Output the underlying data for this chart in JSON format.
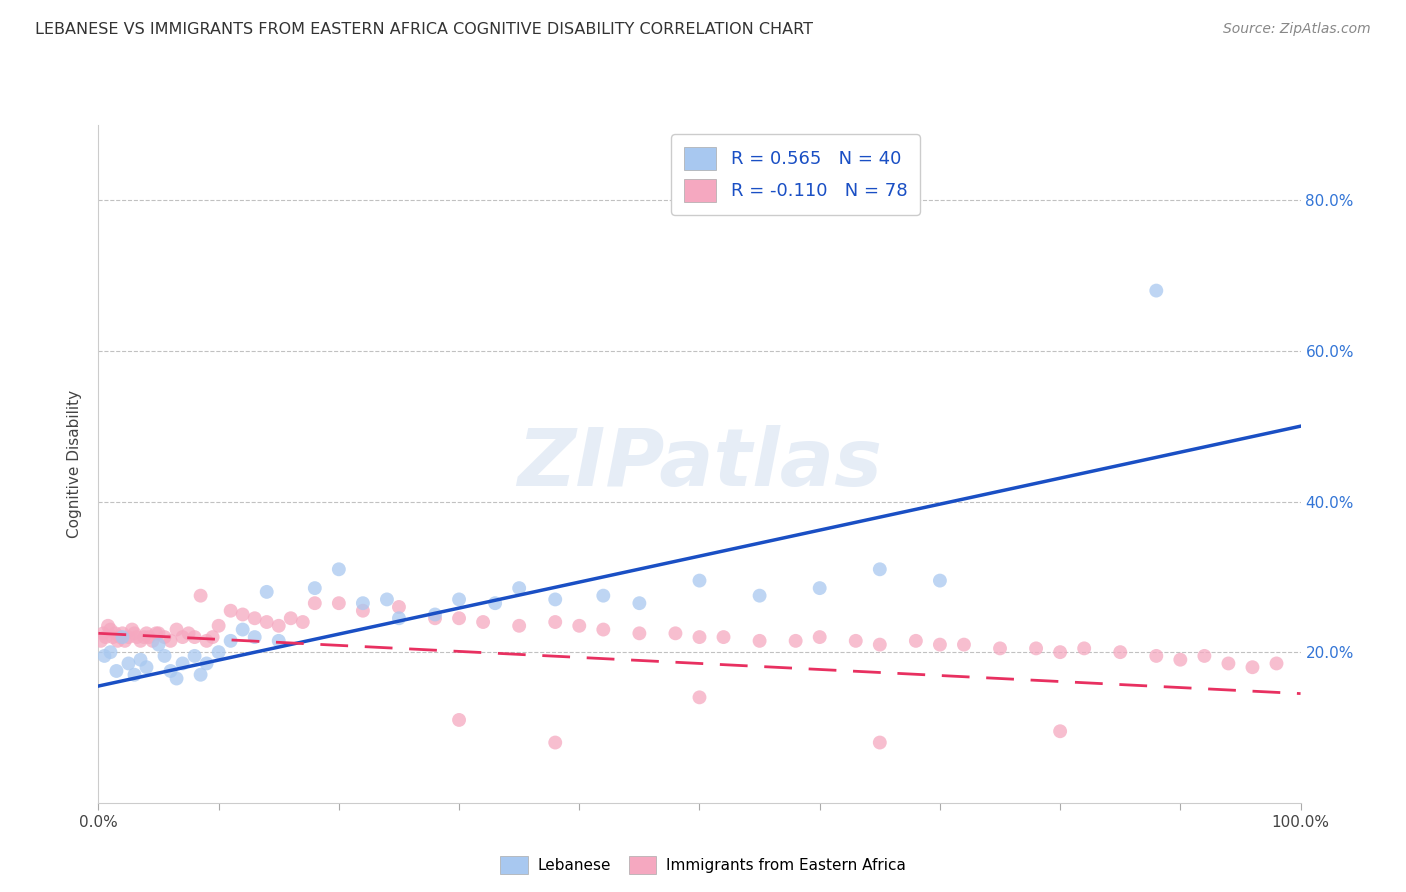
{
  "title": "LEBANESE VS IMMIGRANTS FROM EASTERN AFRICA COGNITIVE DISABILITY CORRELATION CHART",
  "source": "Source: ZipAtlas.com",
  "ylabel": "Cognitive Disability",
  "legend_labels": [
    "Lebanese",
    "Immigrants from Eastern Africa"
  ],
  "R_blue": 0.565,
  "N_blue": 40,
  "R_pink": -0.11,
  "N_pink": 78,
  "blue_color": "#A8C8F0",
  "pink_color": "#F5A8C0",
  "blue_line_color": "#1A4FC4",
  "pink_line_color": "#E83060",
  "background_color": "#FFFFFF",
  "grid_color": "#BBBBBB",
  "watermark": "ZIPatlas",
  "xmin": 0.0,
  "xmax": 1.0,
  "ymin": 0.0,
  "ymax": 0.9,
  "yticks": [
    0.2,
    0.4,
    0.6,
    0.8
  ],
  "ytick_labels": [
    "20.0%",
    "40.0%",
    "60.0%",
    "80.0%"
  ],
  "xticks": [
    0.0,
    0.1,
    0.2,
    0.3,
    0.4,
    0.5,
    0.6,
    0.7,
    0.8,
    0.9,
    1.0
  ],
  "blue_line_start_y": 0.155,
  "blue_line_end_y": 0.5,
  "pink_line_start_y": 0.225,
  "pink_line_end_y": 0.145,
  "blue_x": [
    0.005,
    0.01,
    0.015,
    0.02,
    0.025,
    0.03,
    0.035,
    0.04,
    0.05,
    0.055,
    0.06,
    0.065,
    0.07,
    0.08,
    0.085,
    0.09,
    0.1,
    0.11,
    0.12,
    0.13,
    0.14,
    0.15,
    0.18,
    0.2,
    0.22,
    0.24,
    0.25,
    0.28,
    0.3,
    0.33,
    0.35,
    0.38,
    0.42,
    0.45,
    0.5,
    0.55,
    0.6,
    0.65,
    0.7,
    0.88
  ],
  "blue_y": [
    0.195,
    0.2,
    0.175,
    0.22,
    0.185,
    0.17,
    0.19,
    0.18,
    0.21,
    0.195,
    0.175,
    0.165,
    0.185,
    0.195,
    0.17,
    0.185,
    0.2,
    0.215,
    0.23,
    0.22,
    0.28,
    0.215,
    0.285,
    0.31,
    0.265,
    0.27,
    0.245,
    0.25,
    0.27,
    0.265,
    0.285,
    0.27,
    0.275,
    0.265,
    0.295,
    0.275,
    0.285,
    0.31,
    0.295,
    0.68
  ],
  "pink_x": [
    0.002,
    0.004,
    0.006,
    0.008,
    0.01,
    0.012,
    0.014,
    0.016,
    0.018,
    0.02,
    0.022,
    0.025,
    0.028,
    0.03,
    0.032,
    0.035,
    0.038,
    0.04,
    0.042,
    0.045,
    0.048,
    0.05,
    0.055,
    0.06,
    0.065,
    0.07,
    0.075,
    0.08,
    0.085,
    0.09,
    0.095,
    0.1,
    0.11,
    0.12,
    0.13,
    0.14,
    0.15,
    0.16,
    0.17,
    0.18,
    0.2,
    0.22,
    0.25,
    0.28,
    0.3,
    0.32,
    0.35,
    0.38,
    0.4,
    0.42,
    0.45,
    0.48,
    0.5,
    0.52,
    0.55,
    0.58,
    0.6,
    0.63,
    0.65,
    0.68,
    0.7,
    0.72,
    0.75,
    0.78,
    0.8,
    0.82,
    0.85,
    0.88,
    0.9,
    0.92,
    0.94,
    0.96,
    0.98,
    0.3,
    0.38,
    0.5,
    0.65,
    0.8
  ],
  "pink_y": [
    0.215,
    0.225,
    0.22,
    0.235,
    0.23,
    0.22,
    0.225,
    0.215,
    0.22,
    0.225,
    0.215,
    0.22,
    0.23,
    0.225,
    0.22,
    0.215,
    0.22,
    0.225,
    0.22,
    0.215,
    0.225,
    0.225,
    0.22,
    0.215,
    0.23,
    0.22,
    0.225,
    0.22,
    0.275,
    0.215,
    0.22,
    0.235,
    0.255,
    0.25,
    0.245,
    0.24,
    0.235,
    0.245,
    0.24,
    0.265,
    0.265,
    0.255,
    0.26,
    0.245,
    0.245,
    0.24,
    0.235,
    0.24,
    0.235,
    0.23,
    0.225,
    0.225,
    0.22,
    0.22,
    0.215,
    0.215,
    0.22,
    0.215,
    0.21,
    0.215,
    0.21,
    0.21,
    0.205,
    0.205,
    0.2,
    0.205,
    0.2,
    0.195,
    0.19,
    0.195,
    0.185,
    0.18,
    0.185,
    0.11,
    0.08,
    0.14,
    0.08,
    0.095
  ]
}
